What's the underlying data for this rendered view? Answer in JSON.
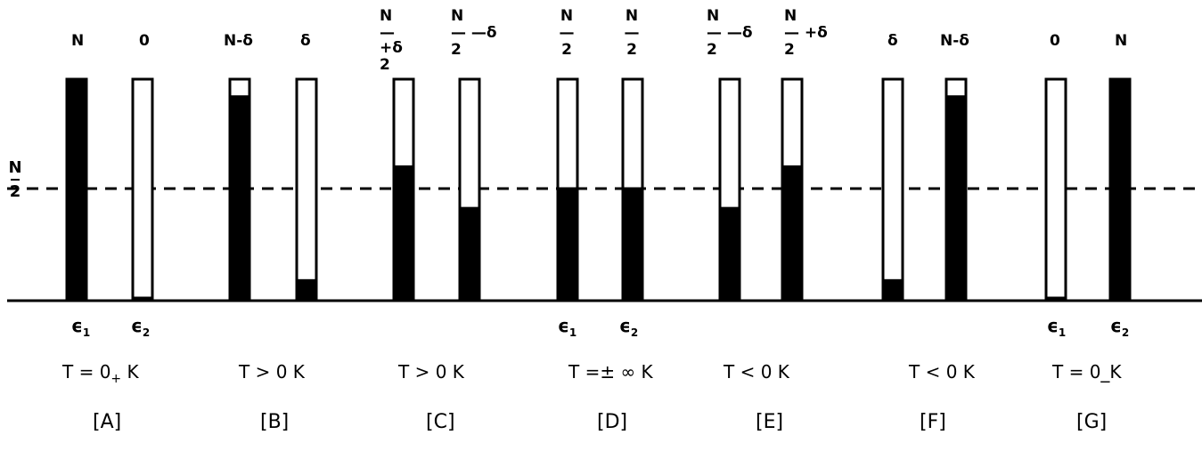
{
  "panels": [
    {
      "id": "A",
      "label": "[A]",
      "temperature": "T = 0₊ K",
      "fill_fraction": [
        1.0,
        0.0
      ],
      "top_labels": [
        {
          "text": "N"
        },
        {
          "text": "0"
        }
      ],
      "energy_labels": [
        "ϵ1",
        "ϵ2"
      ]
    },
    {
      "id": "B",
      "label": "[B]",
      "temperature": "T > 0 K",
      "fill_fraction": [
        0.92,
        0.08
      ],
      "top_labels": [
        {
          "text": "N-δ"
        },
        {
          "text": "δ"
        }
      ],
      "energy_labels": []
    },
    {
      "id": "C",
      "label": "[C]",
      "temperature": "T > 0  K",
      "fill_fraction": [
        0.6,
        0.41
      ],
      "top_labels": [
        {
          "num": "N",
          "mid": "—+δ",
          "den": "2"
        },
        {
          "num": "N",
          "mid": "— —δ",
          "den": "2"
        }
      ],
      "energy_labels": []
    },
    {
      "id": "D",
      "label": "[D]",
      "temperature": "T =± ∞ K",
      "fill_fraction": [
        0.5,
        0.5
      ],
      "top_labels": [
        {
          "num": "N",
          "mid": "—",
          "den": "2"
        },
        {
          "num": "N",
          "mid": "—",
          "den": "2"
        }
      ],
      "energy_labels": [
        "ϵ1",
        "ϵ2"
      ]
    },
    {
      "id": "E",
      "label": "[E]",
      "temperature": "T < 0  K",
      "fill_fraction": [
        0.41,
        0.6
      ],
      "top_labels": [
        {
          "num": "N",
          "mid": "— —δ",
          "den": "2"
        },
        {
          "num": "N",
          "mid": "— +δ",
          "den": "2"
        }
      ],
      "energy_labels": []
    },
    {
      "id": "F",
      "label": "[F]",
      "temperature": "T < 0  K",
      "fill_fraction": [
        0.08,
        0.92
      ],
      "top_labels": [
        {
          "text": "δ"
        },
        {
          "text": "N-δ"
        }
      ],
      "energy_labels": []
    },
    {
      "id": "G",
      "label": "[G]",
      "temperature": "T = 0_K",
      "fill_fraction": [
        0.0,
        1.0
      ],
      "top_labels": [
        {
          "text": "0"
        },
        {
          "text": "N"
        }
      ],
      "energy_labels": [
        "ϵ1",
        "ϵ2"
      ]
    }
  ],
  "half_line_label": {
    "num": "N",
    "den": "2"
  },
  "colors": {
    "fill": "#000000",
    "empty": "#ffffff",
    "stroke": "#000000"
  }
}
